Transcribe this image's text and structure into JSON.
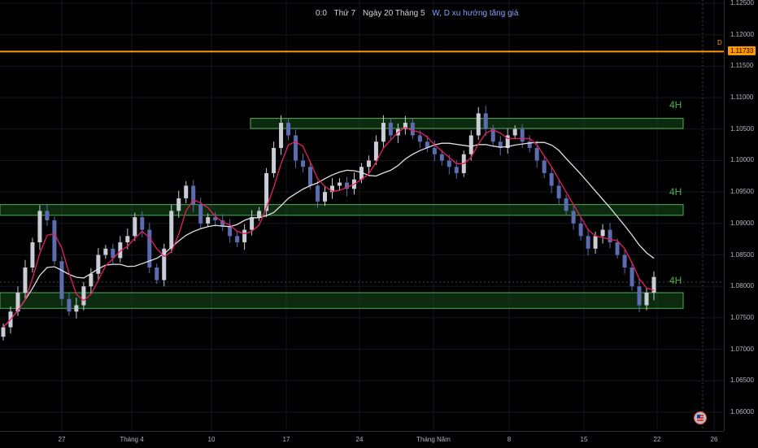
{
  "legend": {
    "ohlc": "0:0",
    "day": "Thứ 7",
    "date": "Ngày 20 Tháng 5",
    "note": "W, D xu hướng tăng giá"
  },
  "price_axis": {
    "labels": [
      "1.12500",
      "1.12000",
      "1.11500",
      "1.11000",
      "1.10500",
      "1.10000",
      "1.09500",
      "1.09000",
      "1.08500",
      "1.08000",
      "1.07500",
      "1.07000",
      "1.06500",
      "1.06000"
    ],
    "current_price": "1.11733",
    "marker": "D"
  },
  "time_axis": {
    "labels": [
      "27",
      "Tháng 4",
      "10",
      "17",
      "24",
      "Tháng Năm",
      "8",
      "15",
      "22",
      "26"
    ]
  },
  "zones": [
    {
      "label": "4H",
      "top": 1.1067,
      "bottom": 1.1051
    },
    {
      "label": "4H",
      "top": 1.093,
      "bottom": 1.0913
    },
    {
      "label": "4H",
      "top": 1.079,
      "bottom": 1.0765
    }
  ],
  "colors": {
    "up": "#c8cdd6",
    "down": "#5b6cb0",
    "ma_fast": "#e91e63",
    "ma_slow": "#e0e0e0",
    "zone_fill": "#1b5e20",
    "zone_border": "#4caf50",
    "current_line": "#ff9800"
  },
  "flag_icon": "us-flag-icon",
  "chart_data": {
    "type": "line",
    "title": "",
    "ylim": [
      1.058,
      1.126
    ],
    "current": 1.11733,
    "close_series": [
      1.0735,
      1.076,
      1.079,
      1.083,
      1.087,
      1.092,
      1.0905,
      1.084,
      1.078,
      1.076,
      1.077,
      1.08,
      1.082,
      1.085,
      1.086,
      1.0845,
      1.087,
      1.088,
      1.091,
      1.089,
      1.083,
      1.081,
      1.086,
      1.092,
      1.094,
      1.096,
      1.093,
      1.09,
      1.091,
      1.0905,
      1.0895,
      1.088,
      1.087,
      1.089,
      1.091,
      1.092,
      1.098,
      1.102,
      1.106,
      1.104,
      1.1,
      1.099,
      1.096,
      1.0935,
      1.095,
      1.096,
      1.0965,
      1.0955,
      1.097,
      1.099,
      1.1,
      1.103,
      1.106,
      1.104,
      1.105,
      1.106,
      1.104,
      1.103,
      1.102,
      1.101,
      1.1,
      1.099,
      1.098,
      1.101,
      1.104,
      1.1075,
      1.105,
      1.103,
      1.102,
      1.104,
      1.105,
      1.103,
      1.102,
      1.1,
      1.098,
      1.096,
      1.094,
      1.092,
      1.09,
      1.088,
      1.086,
      1.088,
      1.089,
      1.087,
      1.085,
      1.083,
      1.08,
      1.077,
      1.079,
      1.0815
    ]
  }
}
